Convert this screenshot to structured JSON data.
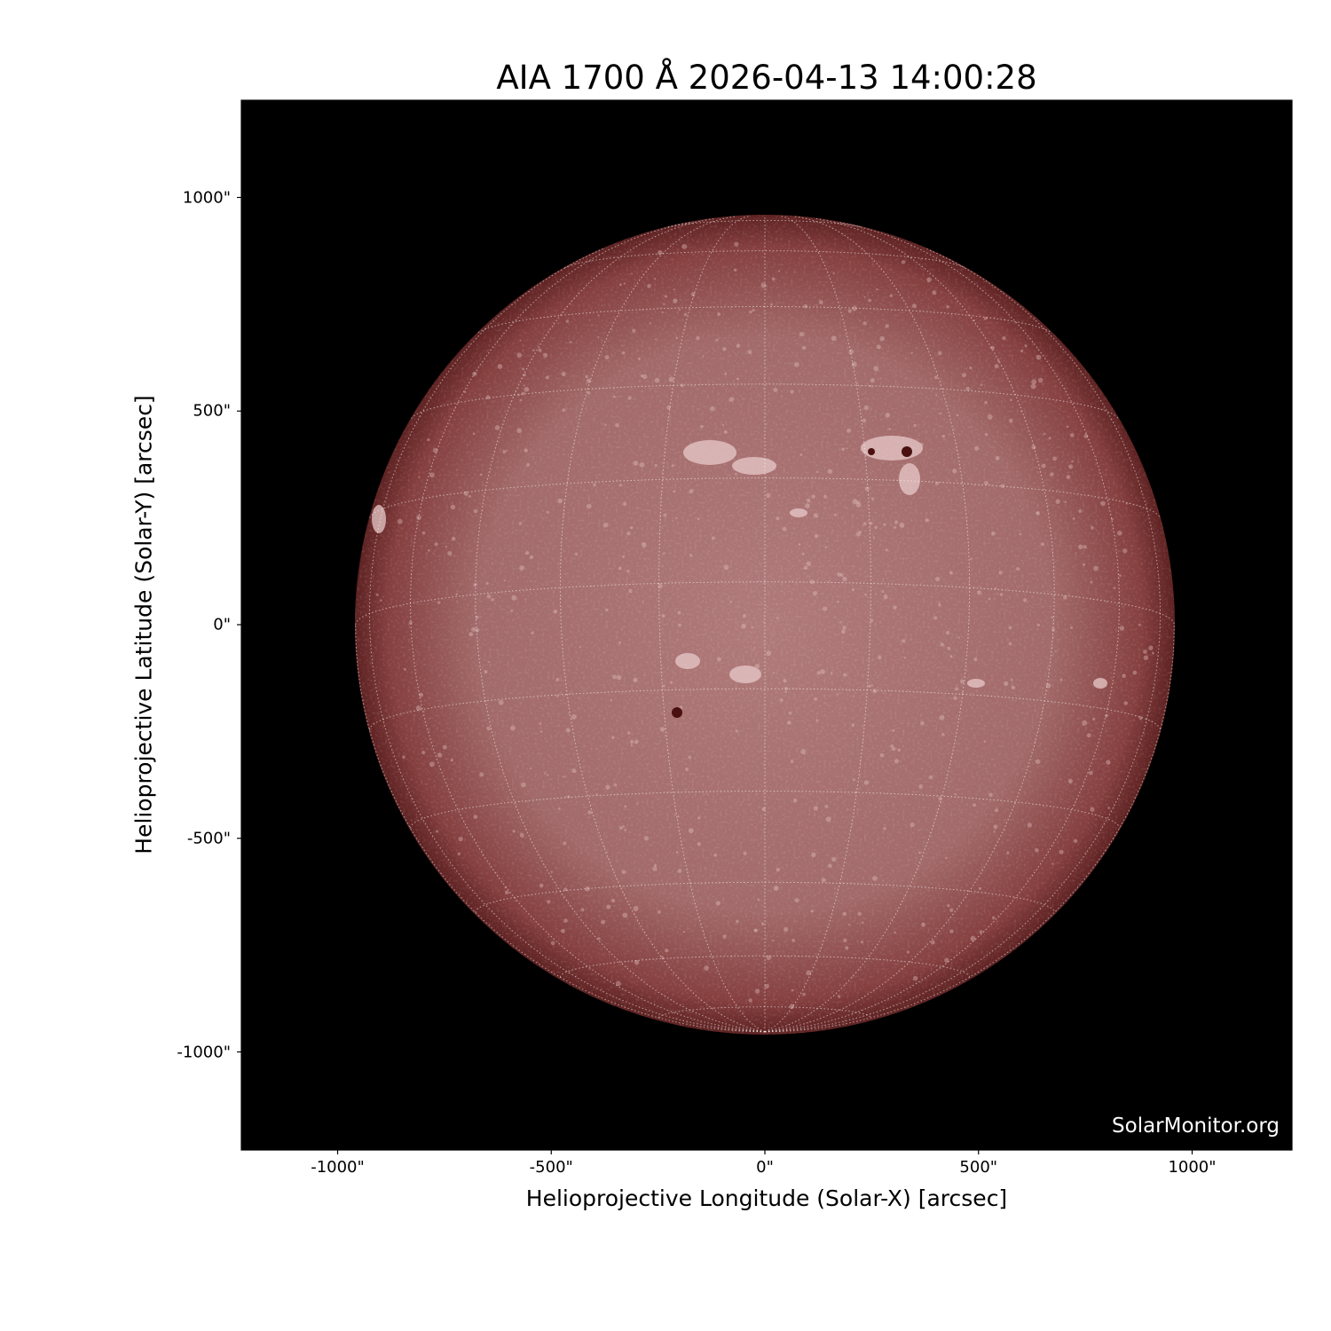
{
  "title": "AIA 1700 Å 2026-04-13 14:00:28",
  "xlabel": "Helioprojective Longitude (Solar-X) [arcsec]",
  "ylabel": "Helioprojective Latitude (Solar-Y) [arcsec]",
  "x_ticks": [
    "-1000\"",
    "-500\"",
    "0\"",
    "500\"",
    "1000\""
  ],
  "y_ticks": [
    "1000\"",
    "500\"",
    "0\"",
    "-500\"",
    "-1000\""
  ],
  "x_tick_values": [
    -1000,
    -500,
    0,
    500,
    1000
  ],
  "y_tick_values": [
    1000,
    500,
    0,
    -500,
    -1000
  ],
  "xlim": [
    -1230,
    1230
  ],
  "ylim": [
    -1230,
    1230
  ],
  "solar_radius_arcsec": 958,
  "grid_spacing_deg": 15,
  "watermark": "SolarMonitor.org",
  "colors": {
    "background": "#000000",
    "disk_center": "#b07a7a",
    "disk_limb": "#5e2222",
    "plage": "#e8caca",
    "sunspot": "#4a1010"
  }
}
